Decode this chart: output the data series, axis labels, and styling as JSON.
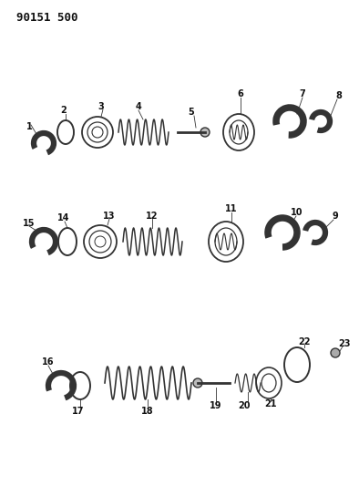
{
  "title": "90151 500",
  "bg_color": "#ffffff",
  "line_color": "#333333",
  "figsize": [
    3.94,
    5.33
  ],
  "dpi": 100
}
